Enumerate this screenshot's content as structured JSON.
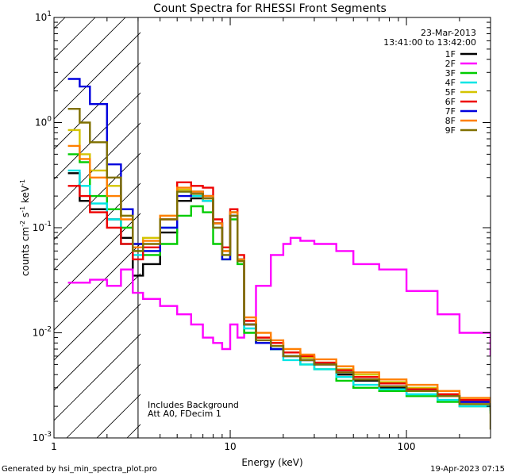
{
  "chart_data": {
    "type": "line",
    "title": "Count Spectra for RHESSI Front Segments",
    "xlabel": "Energy (keV)",
    "ylabel_main": "counts cm",
    "ylabel_sup1": "-2",
    "ylabel_mid": " s",
    "ylabel_sup2": "-1",
    "ylabel_end": " keV",
    "ylabel_sup3": "-1",
    "xscale": "log",
    "yscale": "log",
    "xlim": [
      1,
      300
    ],
    "ylim": [
      0.001,
      10
    ],
    "x_ticks": [
      {
        "value": 1,
        "label": "1"
      },
      {
        "value": 10,
        "label": "10"
      },
      {
        "value": 100,
        "label": "100"
      }
    ],
    "y_ticks": [
      {
        "value": 10,
        "base": "10",
        "exp": "1"
      },
      {
        "value": 1,
        "base": "10",
        "exp": "0"
      },
      {
        "value": 0.1,
        "base": "10",
        "exp": "-1"
      },
      {
        "value": 0.01,
        "base": "10",
        "exp": "-2"
      },
      {
        "value": 0.001,
        "base": "10",
        "exp": "-3"
      }
    ],
    "date": "23-Mar-2013",
    "time_range": "13:41:00 to 13:42:00",
    "shaded_region": {
      "x_from": 1,
      "x_to": 3,
      "pattern": "diagonal hatch"
    },
    "annotation_line1": "Includes Background",
    "annotation_line2": "Att A0, FDecim 1",
    "legend_position": "top-right",
    "series": [
      {
        "name": "1F",
        "color": "#000000",
        "x": [
          1.2,
          1.4,
          1.6,
          2,
          2.4,
          2.8,
          3.2,
          4,
          5,
          6,
          7,
          8,
          9,
          10,
          11,
          12,
          14,
          17,
          20,
          25,
          30,
          40,
          50,
          70,
          100,
          150,
          200,
          300
        ],
        "y": [
          0.33,
          0.18,
          0.15,
          0.12,
          0.08,
          0.035,
          0.045,
          0.09,
          0.18,
          0.19,
          0.18,
          0.11,
          0.06,
          0.14,
          0.05,
          0.012,
          0.008,
          0.007,
          0.006,
          0.0055,
          0.005,
          0.004,
          0.0035,
          0.003,
          0.0028,
          0.0025,
          0.0022,
          0.0018
        ]
      },
      {
        "name": "2F",
        "color": "#ff00ff",
        "x": [
          1.2,
          1.6,
          2,
          2.4,
          2.8,
          3.2,
          4,
          5,
          6,
          7,
          8,
          9,
          10,
          11,
          12,
          14,
          17,
          20,
          22,
          25,
          30,
          40,
          50,
          70,
          100,
          150,
          200,
          300
        ],
        "y": [
          0.03,
          0.032,
          0.028,
          0.04,
          0.024,
          0.021,
          0.018,
          0.015,
          0.012,
          0.009,
          0.008,
          0.007,
          0.012,
          0.009,
          0.012,
          0.028,
          0.055,
          0.07,
          0.08,
          0.075,
          0.07,
          0.06,
          0.045,
          0.04,
          0.025,
          0.015,
          0.01,
          0.006
        ]
      },
      {
        "name": "3F",
        "color": "#00cc00",
        "x": [
          1.2,
          1.4,
          1.6,
          2,
          2.4,
          2.8,
          3.2,
          4,
          5,
          6,
          7,
          8,
          9,
          10,
          11,
          12,
          14,
          17,
          20,
          25,
          30,
          40,
          50,
          70,
          100,
          150,
          200,
          300
        ],
        "y": [
          0.5,
          0.42,
          0.2,
          0.15,
          0.1,
          0.06,
          0.055,
          0.07,
          0.13,
          0.16,
          0.14,
          0.07,
          0.05,
          0.12,
          0.045,
          0.01,
          0.008,
          0.007,
          0.006,
          0.005,
          0.0045,
          0.0035,
          0.003,
          0.0028,
          0.0025,
          0.0022,
          0.002,
          0.0017
        ]
      },
      {
        "name": "4F",
        "color": "#00e5e5",
        "x": [
          1.2,
          1.4,
          1.6,
          2,
          2.4,
          2.8,
          3.2,
          4,
          5,
          6,
          7,
          8,
          9,
          10,
          11,
          12,
          14,
          17,
          20,
          25,
          30,
          40,
          50,
          70,
          100,
          150,
          200,
          300
        ],
        "y": [
          0.35,
          0.25,
          0.17,
          0.12,
          0.07,
          0.055,
          0.06,
          0.1,
          0.22,
          0.2,
          0.18,
          0.1,
          0.055,
          0.13,
          0.05,
          0.011,
          0.008,
          0.007,
          0.0055,
          0.005,
          0.0045,
          0.0038,
          0.0032,
          0.0029,
          0.0026,
          0.0023,
          0.002,
          0.0018
        ]
      },
      {
        "name": "5F",
        "color": "#d4c400",
        "x": [
          1.2,
          1.4,
          1.6,
          2,
          2.4,
          2.8,
          3.2,
          4,
          5,
          6,
          7,
          8,
          9,
          10,
          11,
          12,
          14,
          17,
          20,
          25,
          30,
          40,
          50,
          70,
          100,
          150,
          200,
          300
        ],
        "y": [
          0.85,
          0.5,
          0.35,
          0.25,
          0.13,
          0.07,
          0.08,
          0.13,
          0.23,
          0.22,
          0.19,
          0.11,
          0.06,
          0.14,
          0.05,
          0.013,
          0.009,
          0.008,
          0.0065,
          0.0058,
          0.0052,
          0.0045,
          0.004,
          0.0034,
          0.003,
          0.0026,
          0.0023,
          0.002
        ]
      },
      {
        "name": "6F",
        "color": "#ee0000",
        "x": [
          1.2,
          1.4,
          1.6,
          2,
          2.4,
          2.8,
          3.2,
          4,
          5,
          6,
          7,
          8,
          9,
          10,
          11,
          12,
          14,
          17,
          20,
          25,
          30,
          40,
          50,
          70,
          100,
          150,
          200,
          300
        ],
        "y": [
          0.25,
          0.2,
          0.14,
          0.1,
          0.07,
          0.05,
          0.065,
          0.12,
          0.27,
          0.25,
          0.24,
          0.12,
          0.065,
          0.15,
          0.055,
          0.013,
          0.009,
          0.008,
          0.0065,
          0.006,
          0.0052,
          0.0044,
          0.0038,
          0.0033,
          0.0029,
          0.0026,
          0.0023,
          0.002
        ]
      },
      {
        "name": "7F",
        "color": "#0000dd",
        "x": [
          1.2,
          1.4,
          1.6,
          2,
          2.4,
          2.8,
          3.2,
          4,
          5,
          6,
          7,
          8,
          9,
          10,
          11,
          12,
          14,
          17,
          20,
          25,
          30,
          40,
          50,
          70,
          100,
          150,
          200,
          300
        ],
        "y": [
          2.6,
          2.2,
          1.5,
          0.4,
          0.15,
          0.07,
          0.06,
          0.1,
          0.2,
          0.22,
          0.2,
          0.11,
          0.05,
          0.13,
          0.05,
          0.012,
          0.008,
          0.007,
          0.006,
          0.0055,
          0.005,
          0.0042,
          0.0036,
          0.0031,
          0.0028,
          0.0025,
          0.0022,
          0.0019
        ]
      },
      {
        "name": "8F",
        "color": "#ff7f00",
        "x": [
          1.2,
          1.4,
          1.6,
          2,
          2.4,
          2.8,
          3.2,
          4,
          5,
          6,
          7,
          8,
          9,
          10,
          11,
          12,
          14,
          17,
          20,
          25,
          30,
          40,
          50,
          70,
          100,
          150,
          200,
          300
        ],
        "y": [
          0.6,
          0.45,
          0.3,
          0.2,
          0.12,
          0.065,
          0.075,
          0.13,
          0.24,
          0.22,
          0.2,
          0.11,
          0.06,
          0.14,
          0.05,
          0.014,
          0.01,
          0.0085,
          0.007,
          0.0062,
          0.0056,
          0.0048,
          0.0042,
          0.0036,
          0.0032,
          0.0028,
          0.0024,
          0.0021
        ]
      },
      {
        "name": "9F",
        "color": "#807000",
        "x": [
          1.2,
          1.4,
          1.6,
          2,
          2.4,
          2.8,
          3.2,
          4,
          5,
          6,
          7,
          8,
          9,
          10,
          11,
          12,
          14,
          17,
          20,
          25,
          30,
          40,
          50,
          70,
          100,
          150,
          200,
          300
        ],
        "y": [
          1.35,
          1.0,
          0.65,
          0.3,
          0.13,
          0.06,
          0.07,
          0.12,
          0.22,
          0.21,
          0.19,
          0.1,
          0.055,
          0.13,
          0.048,
          0.012,
          0.0085,
          0.0075,
          0.006,
          0.0055,
          0.005,
          0.0042,
          0.0036,
          0.0031,
          0.0028,
          0.0025,
          0.0021,
          0.0012
        ]
      }
    ]
  },
  "footer": {
    "generated_by": "Generated by hsi_min_spectra_plot.pro",
    "generated_at": "19-Apr-2023 07:15"
  }
}
